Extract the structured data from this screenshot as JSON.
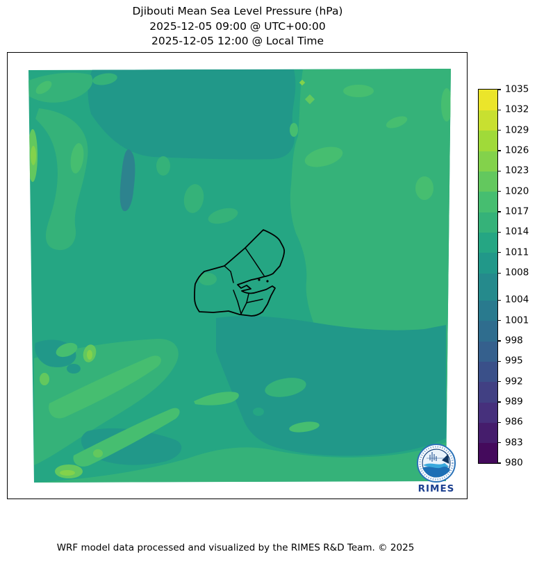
{
  "title": {
    "line1": "Djibouti Mean Sea Level Pressure (hPa)",
    "line2": "2025-12-05 09:00 @ UTC+00:00",
    "line3": "2025-12-05 12:00 @ Local Time"
  },
  "footer": {
    "credit": "WRF model data processed and visualized by the RIMES R&D Team. © 2025"
  },
  "logo": {
    "label": "RIMES",
    "text_color": "#1b3f8f",
    "ring_color": "#2a72b8"
  },
  "colorbar": {
    "unit": "hPa",
    "min": 980,
    "max": 1035,
    "boundaries": [
      980,
      983,
      986,
      989,
      992,
      995,
      998,
      1001,
      1004,
      1008,
      1011,
      1014,
      1017,
      1020,
      1023,
      1026,
      1029,
      1032,
      1035
    ],
    "tick_labels": [
      "980",
      "983",
      "986",
      "989",
      "992",
      "995",
      "998",
      "1001",
      "1004",
      "1008",
      "1011",
      "1014",
      "1017",
      "1020",
      "1023",
      "1026",
      "1029",
      "1032",
      "1035"
    ],
    "segment_colors": [
      "#440a5c",
      "#451d6c",
      "#46307c",
      "#414083",
      "#3a5089",
      "#35608d",
      "#2f6d8e",
      "#297a8e",
      "#258a8c",
      "#219889",
      "#25a683",
      "#35b279",
      "#46be70",
      "#63c85e",
      "#83d24b",
      "#a0da39",
      "#c8e030",
      "#ebe52a"
    ]
  },
  "chart_data": {
    "type": "heatmap",
    "title": "Djibouti Mean Sea Level Pressure (hPa)",
    "subtitle_utc": "2025-12-05 09:00 @ UTC+00:00",
    "subtitle_local": "2025-12-05 12:00 @ Local Time",
    "variable": "Mean Sea Level Pressure",
    "unit": "hPa",
    "region": "Djibouti and surroundings (WRF model domain)",
    "colormap": "viridis",
    "levels": [
      980,
      983,
      986,
      989,
      992,
      995,
      998,
      1001,
      1004,
      1008,
      1011,
      1014,
      1017,
      1020,
      1023,
      1026,
      1029,
      1032,
      1035
    ],
    "legend_position": "right",
    "observed_value_range": [
      1004,
      1026
    ],
    "dominant_band": [
      1011,
      1014
    ],
    "field_summary": [
      {
        "area": "most of domain (center, west)",
        "band_hpa": [
          1011,
          1014
        ]
      },
      {
        "area": "upper-center strip of domain",
        "band_hpa": [
          1008,
          1011
        ]
      },
      {
        "area": "narrow streak west of center",
        "band_hpa": [
          1004,
          1008
        ]
      },
      {
        "area": "north-east and east of domain",
        "band_hpa": [
          1014,
          1017
        ]
      },
      {
        "area": "south-east broad region",
        "band_hpa": [
          1008,
          1011
        ]
      },
      {
        "area": "south-west corner bands",
        "band_hpa": [
          1014,
          1020
        ]
      },
      {
        "area": "small cores south-west and west edge",
        "band_hpa": [
          1020,
          1026
        ]
      }
    ],
    "overlay": "Djibouti national and regional administrative boundaries (black outline)"
  },
  "palette": {
    "band_1004_1008": "#2d838e",
    "band_1008_1011": "#219889",
    "band_1011_1014": "#25a683",
    "band_1014_1017": "#35b279",
    "band_1017_1020": "#46be70",
    "band_1020_1023": "#63c85e",
    "band_1023_1026": "#83d24b"
  }
}
